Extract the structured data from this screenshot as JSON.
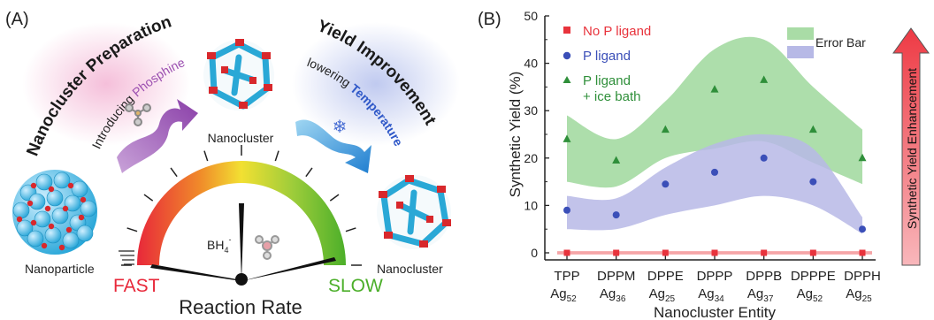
{
  "panel_a": {
    "label": "(A)",
    "arc_left_title": "Nanocluster Preparation",
    "arc_right_title": "Yield Improvement",
    "introducing_prefix": "Introducing ",
    "introducing_word": "Phosphine",
    "lowering_prefix": "lowering ",
    "lowering_word": "Temperature",
    "nanocluster_top": "Nanocluster",
    "nanoparticle": "Nanoparticle",
    "nanocluster_right": "Nanocluster",
    "reagent": "BH",
    "reagent_sub": "4",
    "reagent_sup": "-",
    "fast": "FAST",
    "slow": "SLOW",
    "rate_title": "Reaction Rate",
    "colors": {
      "fast": "#e8283a",
      "slow": "#4caf2a",
      "phosphine": "#9b4fb0",
      "temperature": "#2f58c8"
    }
  },
  "panel_b": {
    "label": "(B)",
    "legend": {
      "no_p": "No P ligand",
      "p": "P ligand",
      "p_ice_1": "P ligand",
      "p_ice_2": "+ ice bath",
      "error_bar": "Error Bar"
    },
    "enhancement_label": "Synthetic Yield Enhancement",
    "x_categories": [
      {
        "top": "TPP",
        "base": "Ag",
        "sub": "52"
      },
      {
        "top": "DPPM",
        "base": "Ag",
        "sub": "36"
      },
      {
        "top": "DPPE",
        "base": "Ag",
        "sub": "25"
      },
      {
        "top": "DPPP",
        "base": "Ag",
        "sub": "34"
      },
      {
        "top": "DPPB",
        "base": "Ag",
        "sub": "37"
      },
      {
        "top": "DPPPE",
        "base": "Ag",
        "sub": "52"
      },
      {
        "top": "DPPH",
        "base": "Ag",
        "sub": "25"
      }
    ]
  },
  "chart_data": {
    "type": "scatter",
    "title": "",
    "xlabel": "Nanocluster Entity",
    "ylabel": "Synthetic Yield (%)",
    "ylim": [
      0,
      50
    ],
    "yticks": [
      0,
      10,
      20,
      30,
      40,
      50
    ],
    "categories": [
      "TPP Ag52",
      "DPPM Ag36",
      "DPPE Ag25",
      "DPPP Ag34",
      "DPPB Ag37",
      "DPPPE Ag52",
      "DPPH Ag25"
    ],
    "series": [
      {
        "name": "No P ligand",
        "marker": "square",
        "color": "#e8333c",
        "values": [
          0,
          0,
          0,
          0,
          0,
          0,
          0
        ]
      },
      {
        "name": "P ligand",
        "marker": "circle",
        "color": "#3b4fb8",
        "values": [
          9,
          8,
          14.5,
          17,
          20,
          15,
          5
        ],
        "band_low": [
          5,
          5,
          8,
          10,
          12,
          10,
          4
        ],
        "band_high": [
          12,
          11.5,
          18,
          23,
          25,
          22,
          7.5
        ],
        "band_color": "#b7b9e6"
      },
      {
        "name": "P ligand + ice bath",
        "marker": "triangle",
        "color": "#2f8f3a",
        "values": [
          24,
          19.5,
          26,
          34.5,
          36.5,
          26,
          20
        ],
        "band_low": [
          15,
          14,
          20,
          22,
          23.5,
          19,
          14.5
        ],
        "band_high": [
          29,
          24,
          32,
          43,
          45,
          35,
          26
        ],
        "band_color": "#a9dca6"
      }
    ],
    "legend_position": "top-left",
    "grid": false
  }
}
